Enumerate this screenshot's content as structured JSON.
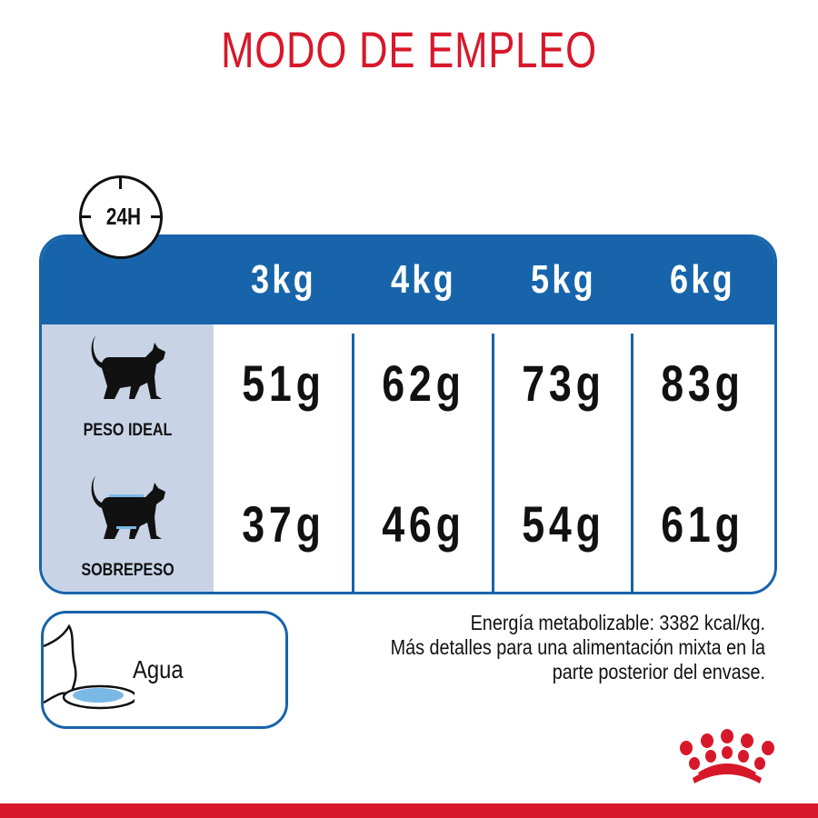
{
  "title": "MODO DE EMPLEO",
  "clock": {
    "label": "24H",
    "icon": "clock-icon"
  },
  "table": {
    "columns": [
      "3kg",
      "4kg",
      "5kg",
      "6kg"
    ],
    "rows": [
      {
        "label": "PESO IDEAL",
        "icon": "cat-ideal-weight-icon",
        "values": [
          "51g",
          "62g",
          "73g",
          "83g"
        ]
      },
      {
        "label": "SOBREPESO",
        "icon": "cat-overweight-icon",
        "values": [
          "37g",
          "46g",
          "54g",
          "61g"
        ]
      }
    ]
  },
  "water": {
    "label": "Agua",
    "icon": "cat-drinking-water-icon"
  },
  "info": {
    "lines": [
      "Energía metabolizable: 3382 kcal/kg.",
      "Más detalles para una alimentación mixta en la",
      "parte posterior del envase."
    ]
  },
  "colors": {
    "brand_red": "#d7182a",
    "table_blue": "#1764ab",
    "side_panel": "#c8d4e6",
    "water_blue": "#7ab8e6"
  }
}
